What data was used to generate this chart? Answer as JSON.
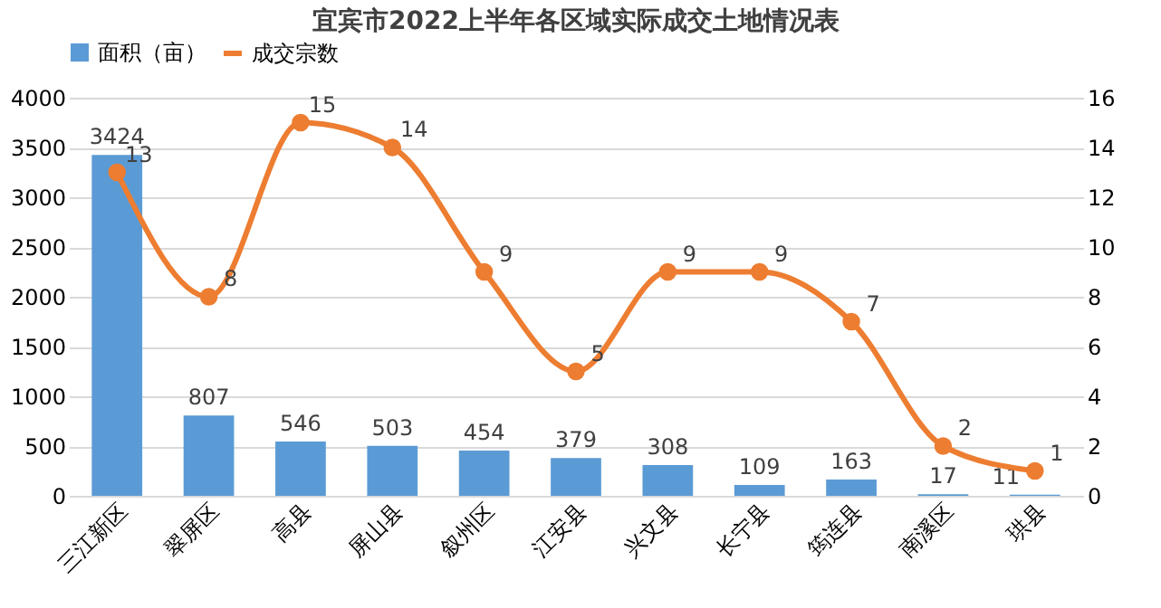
{
  "chart_data": {
    "type": "bar",
    "title": "宜宾市2022上半年各区域实际成交土地情况表",
    "categories": [
      "三江新区",
      "翠屏区",
      "高县",
      "屏山县",
      "叙州区",
      "江安县",
      "兴文县",
      "长宁县",
      "筠连县",
      "南溪区",
      "珙县"
    ],
    "series": [
      {
        "name": "面积（亩）",
        "color": "#5b9bd5",
        "values": [
          3424,
          807,
          546,
          503,
          454,
          379,
          308,
          109,
          163,
          17,
          11
        ]
      },
      {
        "name": "成交宗数",
        "type": "line",
        "axis": "y2",
        "color": "#ed7d31",
        "marker": "circle",
        "values": [
          13,
          8,
          15,
          14,
          9,
          5,
          9,
          9,
          7,
          2,
          1
        ]
      }
    ],
    "ylim": [
      0,
      4000
    ],
    "yticks": [
      0,
      500,
      1000,
      1500,
      2000,
      2500,
      3000,
      3500,
      4000
    ],
    "y2lim": [
      0,
      16
    ],
    "y2ticks": [
      0,
      2,
      4,
      6,
      8,
      10,
      12,
      14,
      16
    ],
    "grid": "y",
    "legend": "top",
    "data_labels": true
  }
}
